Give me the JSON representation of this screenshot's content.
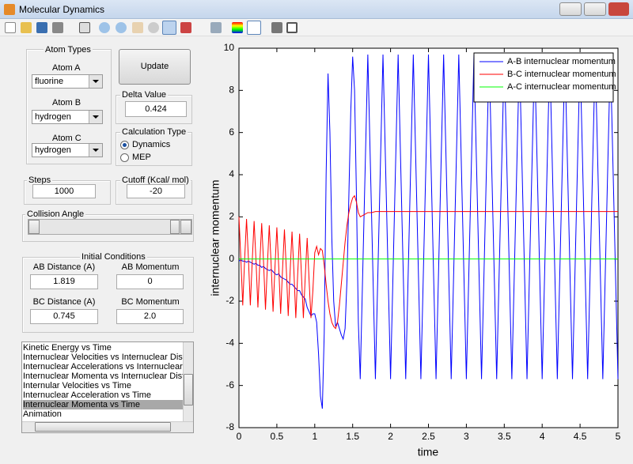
{
  "window": {
    "title": "Molecular Dynamics"
  },
  "atom_types": {
    "title": "Atom Types",
    "atom_a": {
      "label": "Atom A",
      "value": "fluorine"
    },
    "atom_b": {
      "label": "Atom B",
      "value": "hydrogen"
    },
    "atom_c": {
      "label": "Atom C",
      "value": "hydrogen"
    }
  },
  "update_button": "Update",
  "delta_value": {
    "label": "Delta Value",
    "value": "0.424"
  },
  "calculation_type": {
    "label": "Calculation Type",
    "options": [
      "Dynamics",
      "MEP"
    ],
    "selected_index": 0
  },
  "steps": {
    "label": "Steps",
    "value": "1000"
  },
  "cutoff": {
    "label": "Cutoff (Kcal/ mol)",
    "value": "-20"
  },
  "collision_angle": {
    "label": "Collision Angle"
  },
  "initial_conditions": {
    "title": "Initial Conditions",
    "fields": [
      {
        "label": "AB Distance (A)",
        "value": "1.819"
      },
      {
        "label": "AB Momentum",
        "value": "0"
      },
      {
        "label": "BC Distance (A)",
        "value": "0.745"
      },
      {
        "label": "BC Momentum",
        "value": "2.0"
      }
    ]
  },
  "plot_list": {
    "items": [
      "Kinetic Energy vs Time",
      "Internuclear Velocities vs Internuclear Distances",
      "Internuclear Accelerations vs Internuclear Distances",
      "Internuclear Momenta vs Internuclear Distances",
      "Internular Velocities vs Time",
      "Internuclear Acceleration vs Time",
      "Internuclear Momenta vs Time",
      "Animation"
    ],
    "selected_index": 6
  },
  "chart_data": {
    "type": "line",
    "x_label": "time",
    "y_label": "internuclear momentum",
    "xlim": [
      0,
      5
    ],
    "xticks": [
      0,
      0.5,
      1,
      1.5,
      2,
      2.5,
      3,
      3.5,
      4,
      4.5,
      5
    ],
    "ylim": [
      -8,
      10
    ],
    "yticks": [
      -8,
      -6,
      -4,
      -2,
      0,
      2,
      4,
      6,
      8,
      10
    ],
    "grid": false,
    "legend": "northeast",
    "x": [
      0,
      0.025,
      0.05,
      0.075,
      0.1,
      0.125,
      0.15,
      0.175,
      0.2,
      0.225,
      0.25,
      0.275,
      0.3,
      0.325,
      0.35,
      0.375,
      0.4,
      0.425,
      0.45,
      0.475,
      0.5,
      0.525,
      0.55,
      0.575,
      0.6,
      0.625,
      0.65,
      0.675,
      0.7,
      0.725,
      0.75,
      0.775,
      0.8,
      0.825,
      0.85,
      0.875,
      0.9,
      0.925,
      0.95,
      0.975,
      1,
      1.025,
      1.05,
      1.075,
      1.1,
      1.125,
      1.15,
      1.175,
      1.2,
      1.225,
      1.25,
      1.275,
      1.3,
      1.325,
      1.35,
      1.375,
      1.4,
      1.425,
      1.45,
      1.475,
      1.5,
      1.525,
      1.55,
      1.575,
      1.6,
      1.65,
      1.7,
      1.75,
      1.8,
      1.85,
      1.9,
      1.95,
      2,
      2.05,
      2.1,
      2.15,
      2.2,
      2.25,
      2.3,
      2.35,
      2.4,
      2.45,
      2.5,
      2.55,
      2.6,
      2.65,
      2.7,
      2.75,
      2.8,
      2.85,
      2.9,
      2.95,
      3,
      3.05,
      3.1,
      3.15,
      3.2,
      3.25,
      3.3,
      3.35,
      3.4,
      3.45,
      3.5,
      3.55,
      3.6,
      3.65,
      3.7,
      3.75,
      3.8,
      3.85,
      3.9,
      3.95,
      4,
      4.05,
      4.1,
      4.15,
      4.2,
      4.25,
      4.3,
      4.35,
      4.4,
      4.45,
      4.5,
      4.55,
      4.6,
      4.65,
      4.7,
      4.75,
      4.8,
      4.85,
      4.9,
      4.95,
      5
    ],
    "series": [
      {
        "name": "A-B internuclear momentum",
        "color": "#0000ff",
        "values": [
          -0.1,
          -0.05,
          -0.1,
          -0.1,
          -0.15,
          -0.1,
          -0.15,
          -0.2,
          -0.25,
          -0.2,
          -0.3,
          -0.3,
          -0.4,
          -0.35,
          -0.45,
          -0.5,
          -0.55,
          -0.5,
          -0.6,
          -0.7,
          -0.75,
          -0.7,
          -0.85,
          -0.9,
          -0.95,
          -1.0,
          -1.1,
          -1.2,
          -1.2,
          -1.3,
          -1.4,
          -1.5,
          -1.5,
          -1.7,
          -1.8,
          -1.9,
          -2.3,
          -2.5,
          -2.7,
          -2.6,
          -2.6,
          -3.0,
          -4.5,
          -6.5,
          -7.1,
          -3.5,
          4,
          8.8,
          6,
          1,
          -2,
          -3.2,
          -3.0,
          -3.3,
          -3.6,
          -3.8,
          -3.3,
          -1,
          3,
          7,
          9.6,
          8,
          3,
          -3,
          -5.7,
          2,
          9.7,
          2,
          -5.7,
          2,
          9.7,
          2,
          -5.7,
          2,
          9.7,
          2,
          -5.7,
          2,
          9.7,
          2,
          -5.7,
          2,
          9.7,
          2,
          -5.7,
          2,
          9.7,
          2,
          -5.7,
          2,
          9.7,
          2,
          -5.7,
          2,
          9.7,
          2,
          -5.7,
          2,
          9.7,
          2,
          -5.7,
          2,
          9.7,
          2,
          -5.7,
          2,
          9.7,
          2,
          -5.7,
          2,
          9.7,
          2,
          -5.7,
          2,
          9.7,
          2,
          -5.7,
          2,
          9.7,
          2,
          -5.7,
          2,
          9.7,
          2,
          -5.7,
          2,
          9.7,
          2,
          -5.7,
          2,
          9.7,
          2,
          -5.7
        ]
      },
      {
        "name": "B-C internuclear momentum",
        "color": "#ff0000",
        "values": [
          2.0,
          0,
          -2.2,
          0,
          1.9,
          0,
          -2.2,
          -0.1,
          1.8,
          -0.1,
          -2.3,
          -0.2,
          1.7,
          -0.2,
          -2.4,
          -0.3,
          1.6,
          -0.3,
          -2.5,
          -0.4,
          1.5,
          -0.4,
          -2.6,
          -0.5,
          1.4,
          -0.5,
          -2.7,
          -0.6,
          1.3,
          -0.6,
          -2.8,
          -0.7,
          1.2,
          -0.8,
          -2.8,
          -0.8,
          1.0,
          -1.0,
          -2.8,
          -1.5,
          0.3,
          0.6,
          0.2,
          0.5,
          0.4,
          -0.3,
          -1.2,
          -2.0,
          -2.6,
          -3.0,
          -3.2,
          -3.3,
          -3.0,
          -2.2,
          -1.2,
          -0.2,
          0.8,
          1.6,
          2.2,
          2.6,
          2.9,
          3.0,
          2.7,
          2.2,
          2.0,
          2.1,
          2.2,
          2.2,
          2.25,
          2.25,
          2.25,
          2.25,
          2.25,
          2.25,
          2.25,
          2.25,
          2.25,
          2.25,
          2.25,
          2.25,
          2.25,
          2.25,
          2.25,
          2.25,
          2.25,
          2.25,
          2.25,
          2.25,
          2.25,
          2.25,
          2.25,
          2.25,
          2.25,
          2.25,
          2.25,
          2.25,
          2.25,
          2.25,
          2.25,
          2.25,
          2.25,
          2.25,
          2.25,
          2.25,
          2.25,
          2.25,
          2.25,
          2.25,
          2.25,
          2.25,
          2.25,
          2.25,
          2.25,
          2.25,
          2.25,
          2.25,
          2.25,
          2.25,
          2.25,
          2.25,
          2.25,
          2.25,
          2.25,
          2.25,
          2.25,
          2.25,
          2.25,
          2.25,
          2.25,
          2.25,
          2.25,
          2.25,
          2.25
        ]
      },
      {
        "name": "A-C internuclear momentum",
        "color": "#00ff00",
        "values": [
          0,
          0,
          0,
          0,
          0,
          0,
          0,
          0,
          0,
          0,
          0,
          0,
          0,
          0,
          0,
          0,
          0,
          0,
          0,
          0,
          0,
          0,
          0,
          0,
          0,
          0,
          0,
          0,
          0,
          0,
          0,
          0,
          0,
          0,
          0,
          0,
          0,
          0,
          0,
          0,
          0,
          0,
          0,
          0,
          0,
          0,
          0,
          0,
          0,
          0,
          0,
          0,
          0,
          0,
          0,
          0,
          0,
          0,
          0,
          0,
          0,
          0,
          0,
          0,
          0,
          0,
          0,
          0,
          0,
          0,
          0,
          0,
          0,
          0,
          0,
          0,
          0,
          0,
          0,
          0,
          0,
          0,
          0,
          0,
          0,
          0,
          0,
          0,
          0,
          0,
          0,
          0,
          0,
          0,
          0,
          0,
          0,
          0,
          0,
          0,
          0,
          0,
          0,
          0,
          0,
          0,
          0,
          0,
          0,
          0,
          0,
          0,
          0,
          0,
          0,
          0,
          0,
          0,
          0,
          0,
          0,
          0,
          0,
          0,
          0,
          0,
          0,
          0,
          0,
          0,
          0,
          0,
          0
        ]
      }
    ]
  }
}
